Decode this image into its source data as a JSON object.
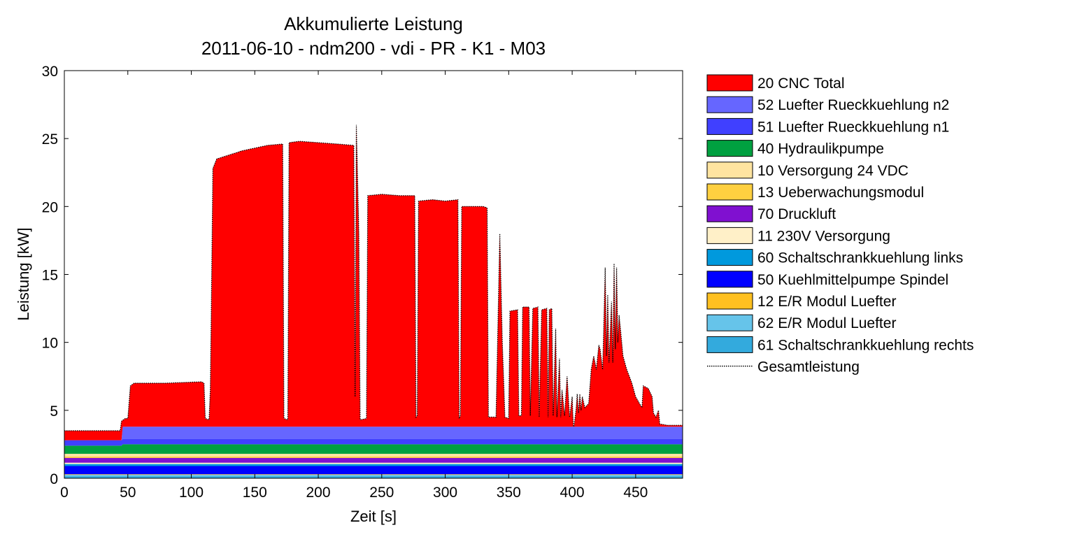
{
  "chart_data": {
    "type": "area",
    "title": "Akkumulierte Leistung",
    "subtitle": "2011-06-10 - ndm200 - vdi - PR - K1 - M03",
    "xlabel": "Zeit [s]",
    "ylabel": "Leistung [kW]",
    "xlim": [
      0,
      487
    ],
    "ylim": [
      0,
      30
    ],
    "xticks": [
      0,
      50,
      100,
      150,
      200,
      250,
      300,
      350,
      400,
      450
    ],
    "yticks": [
      0,
      5,
      10,
      15,
      20,
      25,
      30
    ],
    "grid": false,
    "legend_position": "outside-right",
    "stacked": true,
    "series_stack_bottom_to_top": [
      {
        "name": "61 Schaltschrankkuehlung rechts",
        "color": "#33aadd",
        "value": 0.15
      },
      {
        "name": "62 E/R Modul Luefter",
        "color": "#66c4ea",
        "value": 0.1
      },
      {
        "name": "12 E/R Modul Luefter",
        "color": "#ffc020",
        "value": 0.05
      },
      {
        "name": "50 Kuehlmittelpumpe Spindel",
        "color": "#0000ff",
        "value": 0.6
      },
      {
        "name": "60 Schaltschrankkuehlung links",
        "color": "#0099dd",
        "value": 0.15
      },
      {
        "name": "11 230V Versorgung",
        "color": "#fff0c8",
        "value": 0.1
      },
      {
        "name": "70 Druckluft",
        "color": "#8010d0",
        "value": 0.35
      },
      {
        "name": "13 Ueberwachungsmodul",
        "color": "#ffd040",
        "value": 0.1
      },
      {
        "name": "10 Versorgung 24 VDC",
        "color": "#ffe4a0",
        "value": 0.2
      },
      {
        "name": "40 Hydraulikpumpe",
        "color": "#00a040",
        "values_time": [
          [
            0,
            0.6
          ],
          [
            45,
            0.6
          ],
          [
            46,
            0.7
          ],
          [
            487,
            0.7
          ]
        ]
      },
      {
        "name": "51 Luefter Rueckkuehlung n1",
        "color": "#4040ff",
        "value": 0.4
      },
      {
        "name": "52 Luefter Rueckkuehlung n2",
        "color": "#6666ff",
        "values_time": [
          [
            0,
            0
          ],
          [
            45,
            0
          ],
          [
            46,
            0.9
          ],
          [
            487,
            0.9
          ]
        ]
      },
      {
        "name": "20 CNC Total",
        "color": "#ff0000",
        "total_points": [
          [
            0,
            3.5
          ],
          [
            44,
            3.5
          ],
          [
            45,
            4.2
          ],
          [
            48,
            4.4
          ],
          [
            50,
            4.4
          ],
          [
            52,
            6.8
          ],
          [
            55,
            7.0
          ],
          [
            80,
            7.0
          ],
          [
            108,
            7.1
          ],
          [
            110,
            7.0
          ],
          [
            111,
            4.4
          ],
          [
            114,
            4.3
          ],
          [
            115,
            6.5
          ],
          [
            117,
            22.8
          ],
          [
            120,
            23.5
          ],
          [
            130,
            23.8
          ],
          [
            140,
            24.1
          ],
          [
            150,
            24.3
          ],
          [
            160,
            24.5
          ],
          [
            172,
            24.6
          ],
          [
            173,
            4.4
          ],
          [
            176,
            4.3
          ],
          [
            177,
            24.7
          ],
          [
            185,
            24.8
          ],
          [
            200,
            24.7
          ],
          [
            215,
            24.6
          ],
          [
            228,
            24.5
          ],
          [
            229,
            6.0
          ],
          [
            230,
            26.0
          ],
          [
            232,
            18.0
          ],
          [
            233,
            4.3
          ],
          [
            238,
            4.4
          ],
          [
            239,
            20.8
          ],
          [
            250,
            20.9
          ],
          [
            264,
            20.8
          ],
          [
            276,
            20.8
          ],
          [
            277,
            4.5
          ],
          [
            278,
            4.6
          ],
          [
            279,
            20.4
          ],
          [
            290,
            20.5
          ],
          [
            300,
            20.4
          ],
          [
            310,
            20.5
          ],
          [
            311,
            4.4
          ],
          [
            312,
            4.6
          ],
          [
            313,
            20.0
          ],
          [
            330,
            20.0
          ],
          [
            333,
            19.9
          ],
          [
            334,
            4.5
          ],
          [
            340,
            4.5
          ],
          [
            343,
            18.0
          ],
          [
            345,
            10.0
          ],
          [
            347,
            4.5
          ],
          [
            350,
            4.4
          ],
          [
            351,
            12.3
          ],
          [
            357,
            12.4
          ],
          [
            358,
            4.6
          ],
          [
            360,
            4.6
          ],
          [
            361,
            12.6
          ],
          [
            366,
            12.6
          ],
          [
            367,
            4.6
          ],
          [
            369,
            12.5
          ],
          [
            373,
            12.6
          ],
          [
            374,
            4.5
          ],
          [
            376,
            12.4
          ],
          [
            380,
            12.5
          ],
          [
            381,
            4.5
          ],
          [
            382,
            12.4
          ],
          [
            384,
            12.5
          ],
          [
            385,
            4.6
          ],
          [
            387,
            11.0
          ],
          [
            388,
            4.5
          ],
          [
            390,
            8.8
          ],
          [
            391,
            4.5
          ],
          [
            392,
            6.5
          ],
          [
            394,
            4.6
          ],
          [
            396,
            7.5
          ],
          [
            398,
            4.5
          ],
          [
            400,
            6.0
          ],
          [
            401,
            3.5
          ],
          [
            403,
            5.0
          ],
          [
            404,
            6.2
          ],
          [
            405,
            4.8
          ],
          [
            406,
            6.2
          ],
          [
            407,
            5.0
          ],
          [
            408,
            6.0
          ],
          [
            410,
            5.2
          ],
          [
            413,
            5.5
          ],
          [
            415,
            8.0
          ],
          [
            417,
            9.0
          ],
          [
            419,
            8.0
          ],
          [
            421,
            9.8
          ],
          [
            422,
            9.5
          ],
          [
            424,
            8.0
          ],
          [
            426,
            15.5
          ],
          [
            427,
            9.0
          ],
          [
            428,
            13.5
          ],
          [
            429,
            8.5
          ],
          [
            431,
            13.0
          ],
          [
            432,
            8.5
          ],
          [
            433,
            15.8
          ],
          [
            434,
            9.5
          ],
          [
            435,
            15.5
          ],
          [
            436,
            10.0
          ],
          [
            437,
            12.0
          ],
          [
            440,
            9.0
          ],
          [
            443,
            8.0
          ],
          [
            447,
            7.0
          ],
          [
            450,
            6.0
          ],
          [
            453,
            5.5
          ],
          [
            455,
            5.2
          ],
          [
            456,
            6.8
          ],
          [
            460,
            6.6
          ],
          [
            463,
            6.0
          ],
          [
            464,
            4.8
          ],
          [
            466,
            4.5
          ],
          [
            468,
            5.0
          ],
          [
            469,
            4.0
          ],
          [
            475,
            3.9
          ],
          [
            487,
            3.9
          ]
        ]
      }
    ],
    "legend_order": [
      {
        "label": "20 CNC Total",
        "color": "#ff0000"
      },
      {
        "label": "52 Luefter Rueckkuehlung n2",
        "color": "#6666ff"
      },
      {
        "label": "51 Luefter Rueckkuehlung n1",
        "color": "#4040ff"
      },
      {
        "label": "40 Hydraulikpumpe",
        "color": "#00a040"
      },
      {
        "label": "10 Versorgung 24 VDC",
        "color": "#ffe4a0"
      },
      {
        "label": "13 Ueberwachungsmodul",
        "color": "#ffd040"
      },
      {
        "label": "70 Druckluft",
        "color": "#8010d0"
      },
      {
        "label": "11 230V Versorgung",
        "color": "#fff0c8"
      },
      {
        "label": "60 Schaltschrankkuehlung links",
        "color": "#0099dd"
      },
      {
        "label": "50 Kuehlmittelpumpe Spindel",
        "color": "#0000ff"
      },
      {
        "label": "12 E/R Modul Luefter",
        "color": "#ffc020"
      },
      {
        "label": "62 E/R Modul Luefter",
        "color": "#66c4ea"
      },
      {
        "label": "61 Schaltschrankkuehlung rechts",
        "color": "#33aadd"
      },
      {
        "label": "Gesamtleistung",
        "color": "#000000",
        "style": "dotted-line"
      }
    ]
  }
}
